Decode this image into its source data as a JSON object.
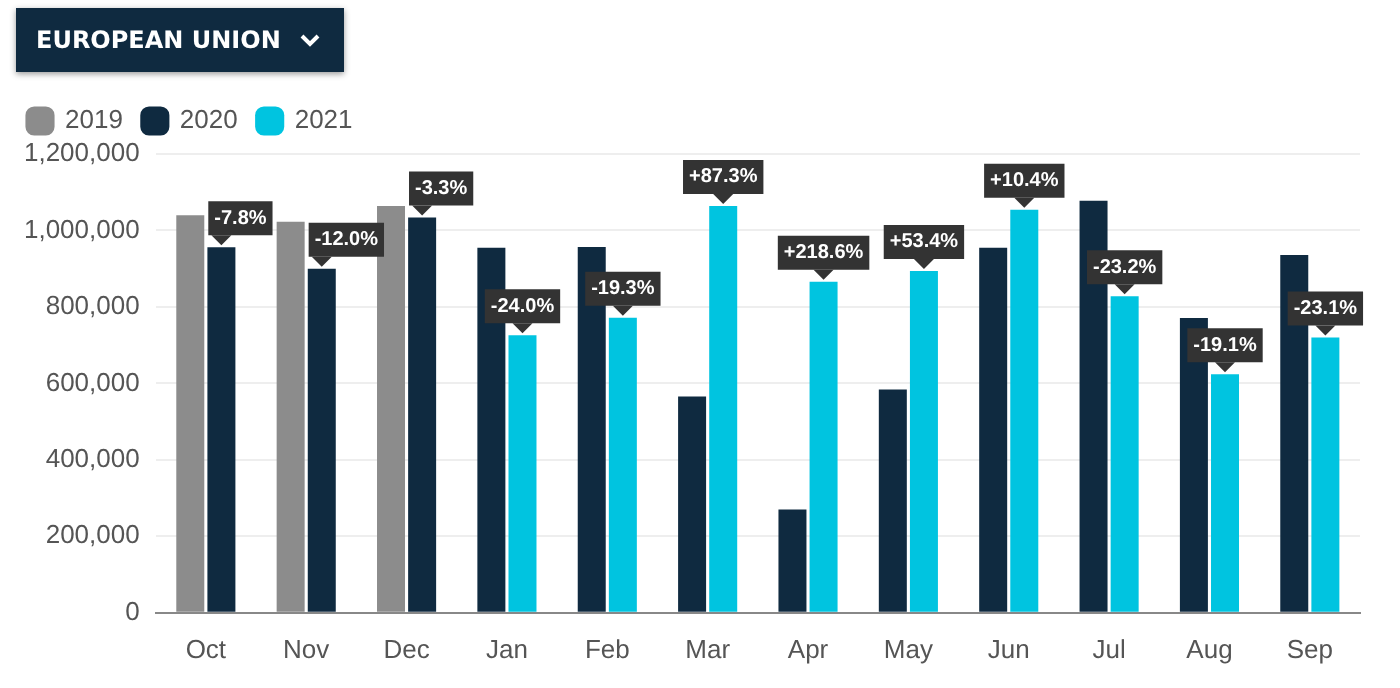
{
  "chart_data": {
    "type": "bar",
    "title": "EUROPEAN UNION",
    "categories": [
      "Oct",
      "Nov",
      "Dec",
      "Jan",
      "Feb",
      "Mar",
      "Apr",
      "May",
      "Jun",
      "Jul",
      "Aug",
      "Sep"
    ],
    "series": [
      {
        "name": "2019",
        "color": "#8c8c8c",
        "values": [
          1040000,
          1023000,
          1064000,
          null,
          null,
          null,
          null,
          null,
          null,
          null,
          null,
          null
        ]
      },
      {
        "name": "2020",
        "color": "#0f2a40",
        "values": [
          956000,
          900000,
          1034000,
          955000,
          957000,
          566000,
          270000,
          584000,
          955000,
          1078000,
          771000,
          936000
        ]
      },
      {
        "name": "2021",
        "color": "#00c4e0",
        "values": [
          null,
          null,
          null,
          726000,
          772000,
          1064000,
          866000,
          894000,
          1054000,
          828000,
          624000,
          720000
        ]
      }
    ],
    "ylim": [
      0,
      1200000
    ],
    "yticks": [
      0,
      {
        "value": 200000,
        "label": "200,000"
      },
      {
        "value": 400000,
        "label": "400,000"
      },
      {
        "value": 600000,
        "label": "600,000"
      },
      {
        "value": 800000,
        "label": "800,000"
      },
      {
        "value": 1000000,
        "label": "1,000,000"
      },
      {
        "value": 1200000,
        "label": "1,200,000"
      }
    ],
    "grid": "y",
    "legend": "top left",
    "annotations": [
      {
        "text": "-7.8%",
        "x": "Oct",
        "y": 956000
      },
      {
        "text": "-12.0%",
        "x": "Nov",
        "y": 900000
      },
      {
        "text": "-3.3%",
        "x": "Dec",
        "y": 1034000
      },
      {
        "text": "-24.0%",
        "x": "Jan",
        "y": 726000
      },
      {
        "text": "-19.3%",
        "x": "Feb",
        "y": 772000
      },
      {
        "text": "+87.3%",
        "x": "Mar",
        "y": 1064000
      },
      {
        "text": "+218.6%",
        "x": "Apr",
        "y": 866000
      },
      {
        "text": "+53.4%",
        "x": "May",
        "y": 894000
      },
      {
        "text": "+10.4%",
        "x": "Jun",
        "y": 1054000
      },
      {
        "text": "-23.2%",
        "x": "Jul",
        "y": 828000
      },
      {
        "text": "-19.1%",
        "x": "Aug",
        "y": 624000
      },
      {
        "text": "-23.1%",
        "x": "Sep",
        "y": 720000
      }
    ]
  }
}
